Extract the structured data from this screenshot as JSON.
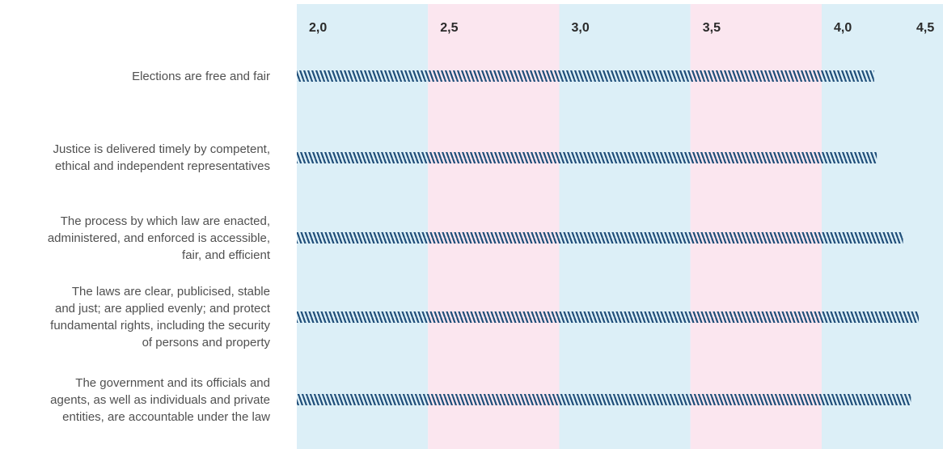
{
  "chart_data": {
    "type": "bar",
    "orientation": "horizontal",
    "categories": [
      "Elections are free and fair",
      "Justice is delivered timely by competent, ethical and independent representatives",
      "The process by which law are enacted, administered, and enforced is accessible, fair, and efficient",
      "The laws are clear, publicised, stable and just; are applied evenly; and protect fundamental rights, including the security of persons and property",
      "The government and its officials and agents, as well as individuals and private entities, are accountable under the law"
    ],
    "category_lines": [
      [
        "Elections are free and fair"
      ],
      [
        "Justice is delivered timely by competent,",
        "ethical and independent representatives"
      ],
      [
        "The process by which law are enacted,",
        "administered, and enforced is accessible,",
        "fair, and efficient"
      ],
      [
        "The laws are clear, publicised, stable",
        "and just; are applied evenly; and protect",
        "fundamental rights, including the security",
        "of persons and property"
      ],
      [
        "The government and its officials and",
        "agents, as well as individuals and private",
        "entities, are accountable under the law"
      ]
    ],
    "values": [
      4.2,
      4.21,
      4.31,
      4.37,
      4.34
    ],
    "xlim": [
      2.0,
      4.5
    ],
    "ticks": [
      2.0,
      2.5,
      3.0,
      3.5,
      4.0,
      4.5
    ],
    "tick_labels": [
      "2,0",
      "2,5",
      "3,0",
      "3,5",
      "4,0",
      "4,5"
    ],
    "axis_position": "top",
    "band_colors": [
      "#dceff7",
      "#fbe6ef"
    ],
    "bar_color": "#1f4e79",
    "bar_style": "hatched",
    "grid": false,
    "legend": "none",
    "title": "",
    "xlabel": "",
    "ylabel": ""
  }
}
